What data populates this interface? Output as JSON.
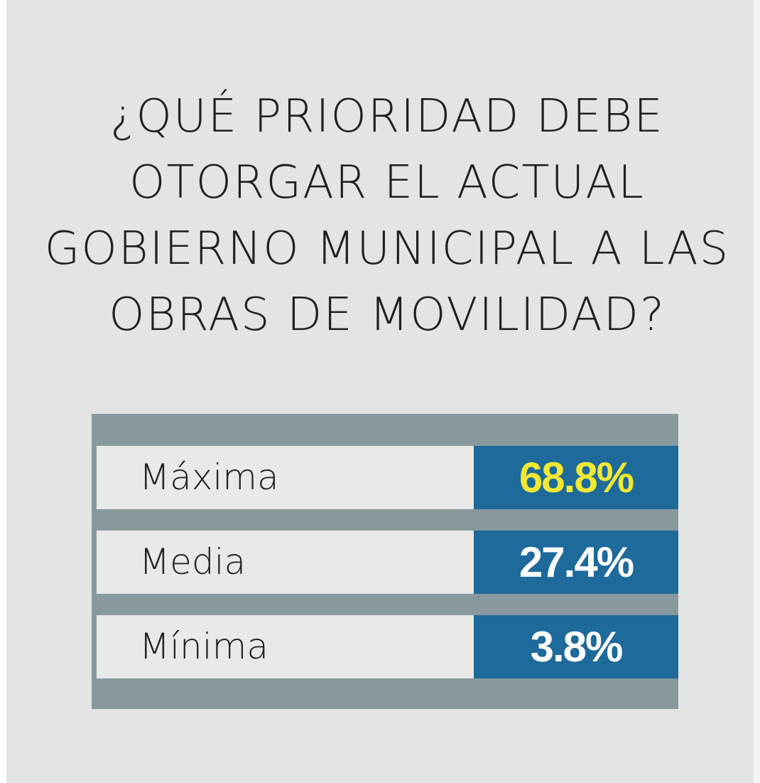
{
  "title": "¿QUÉ PRIORIDAD DEBE\nOTORGAR EL ACTUAL\nGOBIERNO MUNICIPAL A LAS\nOBRAS DE MOVILIDAD?",
  "colors": {
    "background": "#e4e4e4",
    "frame": "#87999c",
    "label_cell": "#e9e9e9",
    "value_cell": "#1d6a9b",
    "highlight_text": "#f2e833",
    "value_text": "#ffffff"
  },
  "chart_data": {
    "type": "table",
    "title": "¿QUÉ PRIORIDAD DEBE OTORGAR EL ACTUAL GOBIERNO MUNICIPAL A LAS OBRAS DE MOVILIDAD?",
    "categories": [
      "Máxima",
      "Media",
      "Mínima"
    ],
    "values": [
      68.8,
      27.4,
      3.8
    ],
    "value_labels": [
      "68.8%",
      "27.4%",
      "3.8%"
    ],
    "highlighted": [
      true,
      false,
      false
    ]
  }
}
